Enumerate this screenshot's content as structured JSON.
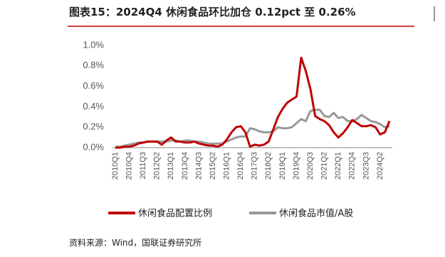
{
  "chart_data": {
    "type": "line",
    "title": "图表15：2024Q4 休闲食品环比加仓 0.12pct 至 0.26%",
    "source": "资料来源：Wind，国联证券研究所",
    "categories": [
      "2010Q1",
      null,
      null,
      "2010Q4",
      null,
      null,
      "2011Q3",
      null,
      null,
      "2012Q2",
      null,
      null,
      "2013Q1",
      null,
      null,
      "2013Q4",
      null,
      null,
      "2014Q3",
      null,
      null,
      "2015Q2",
      null,
      null,
      "2016Q1",
      null,
      null,
      "2016Q4",
      null,
      null,
      "2017Q3",
      null,
      null,
      "2018Q2",
      null,
      null,
      "2019Q1",
      null,
      null,
      "2019Q4",
      null,
      null,
      "2020Q3",
      null,
      null,
      "2021Q2",
      null,
      null,
      "2022Q1",
      null,
      null,
      "2022Q4",
      null,
      null,
      "2023Q3",
      null,
      null,
      "2024Q2",
      null,
      null
    ],
    "series": [
      {
        "name": "休闲食品配置比例",
        "color": "#c00000",
        "values": [
          0.0,
          0.0,
          0.01,
          0.01,
          0.02,
          0.04,
          0.05,
          0.06,
          0.06,
          0.06,
          0.03,
          0.07,
          0.1,
          0.06,
          0.06,
          0.05,
          0.05,
          0.06,
          0.04,
          0.03,
          0.02,
          0.02,
          0.01,
          0.03,
          0.08,
          0.15,
          0.2,
          0.21,
          0.15,
          0.01,
          0.03,
          0.02,
          0.03,
          0.06,
          0.18,
          0.3,
          0.38,
          0.44,
          0.47,
          0.5,
          0.88,
          0.75,
          0.57,
          0.31,
          0.28,
          0.26,
          0.22,
          0.15,
          0.1,
          0.14,
          0.2,
          0.27,
          0.24,
          0.21,
          0.21,
          0.22,
          0.2,
          0.13,
          0.15,
          0.26
        ]
      },
      {
        "name": "休闲食品市值/A股",
        "color": "#999999",
        "values": [
          0.01,
          0.01,
          0.02,
          0.03,
          0.04,
          0.05,
          0.05,
          0.06,
          0.06,
          0.06,
          0.06,
          0.06,
          0.07,
          0.07,
          0.06,
          0.07,
          0.07,
          0.06,
          0.06,
          0.05,
          0.04,
          0.04,
          0.04,
          0.04,
          0.06,
          0.08,
          0.1,
          0.11,
          0.11,
          0.19,
          0.18,
          0.16,
          0.15,
          0.15,
          0.16,
          0.2,
          0.19,
          0.19,
          0.2,
          0.24,
          0.28,
          0.26,
          0.36,
          0.37,
          0.37,
          0.31,
          0.3,
          0.34,
          0.29,
          0.3,
          0.26,
          0.26,
          0.28,
          0.32,
          0.29,
          0.26,
          0.25,
          0.23,
          0.2,
          0.21
        ]
      }
    ],
    "ylim": [
      0,
      1.0
    ],
    "yticks": [
      {
        "value": 0,
        "label": "0.0%"
      },
      {
        "value": 0.2,
        "label": "0.2%"
      },
      {
        "value": 0.4,
        "label": "0.4%"
      },
      {
        "value": 0.6,
        "label": "0.6%"
      },
      {
        "value": 0.8,
        "label": "0.8%"
      },
      {
        "value": 1.0,
        "label": "1.0%"
      }
    ]
  }
}
